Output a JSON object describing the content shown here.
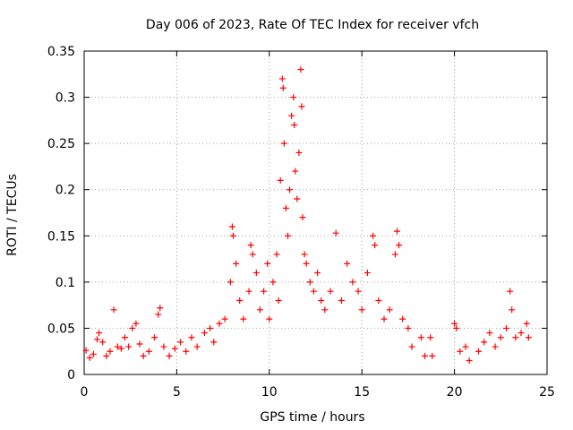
{
  "chart_data": {
    "type": "scatter",
    "title": "Day 006 of 2023, Rate Of TEC Index for receiver vfch",
    "xlabel": "GPS time / hours",
    "ylabel": "ROTI / TECUs",
    "xlim": [
      0,
      25
    ],
    "ylim": [
      0,
      0.35
    ],
    "xticks": [
      0,
      5,
      10,
      15,
      20,
      25
    ],
    "yticks": [
      0,
      0.05,
      0.1,
      0.15,
      0.2,
      0.25,
      0.3,
      0.35
    ],
    "grid": true,
    "marker": "+",
    "series_color": "#ff0000",
    "series": [
      {
        "points": [
          [
            0.1,
            0.026
          ],
          [
            0.3,
            0.018
          ],
          [
            0.5,
            0.022
          ],
          [
            0.7,
            0.038
          ],
          [
            0.8,
            0.045
          ],
          [
            1.0,
            0.035
          ],
          [
            1.2,
            0.02
          ],
          [
            1.4,
            0.025
          ],
          [
            1.6,
            0.07
          ],
          [
            1.8,
            0.03
          ],
          [
            2.0,
            0.028
          ],
          [
            2.2,
            0.04
          ],
          [
            2.4,
            0.03
          ],
          [
            2.6,
            0.05
          ],
          [
            2.8,
            0.055
          ],
          [
            3.0,
            0.033
          ],
          [
            3.2,
            0.02
          ],
          [
            3.5,
            0.025
          ],
          [
            3.8,
            0.04
          ],
          [
            4.0,
            0.065
          ],
          [
            4.1,
            0.072
          ],
          [
            4.3,
            0.03
          ],
          [
            4.6,
            0.02
          ],
          [
            4.9,
            0.028
          ],
          [
            5.2,
            0.035
          ],
          [
            5.5,
            0.025
          ],
          [
            5.8,
            0.04
          ],
          [
            6.1,
            0.03
          ],
          [
            6.5,
            0.045
          ],
          [
            6.8,
            0.05
          ],
          [
            7.0,
            0.035
          ],
          [
            7.3,
            0.055
          ],
          [
            7.6,
            0.06
          ],
          [
            7.9,
            0.1
          ],
          [
            8.0,
            0.16
          ],
          [
            8.05,
            0.15
          ],
          [
            8.2,
            0.12
          ],
          [
            8.4,
            0.08
          ],
          [
            8.6,
            0.06
          ],
          [
            8.9,
            0.09
          ],
          [
            9.0,
            0.14
          ],
          [
            9.1,
            0.13
          ],
          [
            9.3,
            0.11
          ],
          [
            9.5,
            0.07
          ],
          [
            9.7,
            0.09
          ],
          [
            9.9,
            0.12
          ],
          [
            10.0,
            0.06
          ],
          [
            10.2,
            0.1
          ],
          [
            10.4,
            0.13
          ],
          [
            10.5,
            0.08
          ],
          [
            10.6,
            0.21
          ],
          [
            10.7,
            0.32
          ],
          [
            10.75,
            0.31
          ],
          [
            10.8,
            0.25
          ],
          [
            10.9,
            0.18
          ],
          [
            11.0,
            0.15
          ],
          [
            11.1,
            0.2
          ],
          [
            11.2,
            0.28
          ],
          [
            11.3,
            0.3
          ],
          [
            11.35,
            0.27
          ],
          [
            11.4,
            0.22
          ],
          [
            11.5,
            0.19
          ],
          [
            11.6,
            0.24
          ],
          [
            11.7,
            0.33
          ],
          [
            11.75,
            0.29
          ],
          [
            11.8,
            0.17
          ],
          [
            11.9,
            0.13
          ],
          [
            12.0,
            0.12
          ],
          [
            12.2,
            0.1
          ],
          [
            12.4,
            0.09
          ],
          [
            12.6,
            0.11
          ],
          [
            12.8,
            0.08
          ],
          [
            13.0,
            0.07
          ],
          [
            13.3,
            0.09
          ],
          [
            13.6,
            0.153
          ],
          [
            13.9,
            0.08
          ],
          [
            14.2,
            0.12
          ],
          [
            14.5,
            0.1
          ],
          [
            14.8,
            0.09
          ],
          [
            15.0,
            0.07
          ],
          [
            15.3,
            0.11
          ],
          [
            15.6,
            0.15
          ],
          [
            15.7,
            0.14
          ],
          [
            15.9,
            0.08
          ],
          [
            16.2,
            0.06
          ],
          [
            16.5,
            0.07
          ],
          [
            16.8,
            0.13
          ],
          [
            16.9,
            0.155
          ],
          [
            17.0,
            0.14
          ],
          [
            17.2,
            0.06
          ],
          [
            17.5,
            0.05
          ],
          [
            17.7,
            0.03
          ],
          [
            18.2,
            0.04
          ],
          [
            18.4,
            0.02
          ],
          [
            18.7,
            0.04
          ],
          [
            18.8,
            0.02
          ],
          [
            20.0,
            0.055
          ],
          [
            20.1,
            0.05
          ],
          [
            20.3,
            0.025
          ],
          [
            20.6,
            0.03
          ],
          [
            20.8,
            0.015
          ],
          [
            21.3,
            0.025
          ],
          [
            21.6,
            0.035
          ],
          [
            21.9,
            0.045
          ],
          [
            22.2,
            0.03
          ],
          [
            22.5,
            0.04
          ],
          [
            22.8,
            0.05
          ],
          [
            23.0,
            0.09
          ],
          [
            23.1,
            0.07
          ],
          [
            23.3,
            0.04
          ],
          [
            23.6,
            0.045
          ],
          [
            23.9,
            0.055
          ],
          [
            24.0,
            0.04
          ]
        ]
      }
    ]
  }
}
